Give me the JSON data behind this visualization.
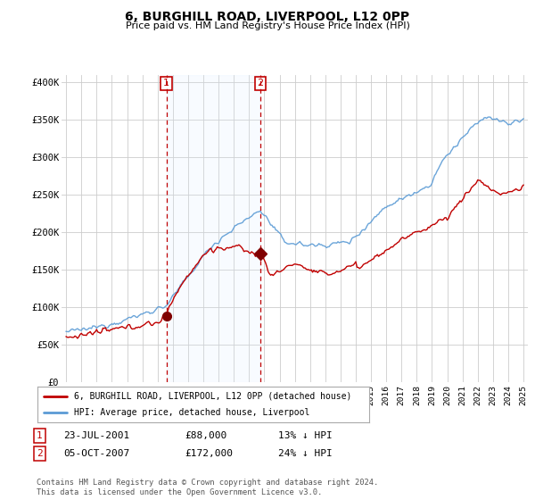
{
  "title": "6, BURGHILL ROAD, LIVERPOOL, L12 0PP",
  "subtitle": "Price paid vs. HM Land Registry's House Price Index (HPI)",
  "ylim": [
    0,
    410000
  ],
  "yticks": [
    0,
    50000,
    100000,
    150000,
    200000,
    250000,
    300000,
    350000,
    400000
  ],
  "ytick_labels": [
    "£0",
    "£50K",
    "£100K",
    "£150K",
    "£200K",
    "£250K",
    "£300K",
    "£350K",
    "£400K"
  ],
  "hpi_color": "#5b9bd5",
  "price_color": "#c00000",
  "vline_color": "#c00000",
  "shade_color": "#ddeeff",
  "t1_year": 2001.583,
  "t2_year": 2007.75,
  "t1_price": 88000,
  "t2_price": 172000,
  "transaction1_date": "23-JUL-2001",
  "transaction1_price": "£88,000",
  "transaction1_hpi": "13% ↓ HPI",
  "transaction2_date": "05-OCT-2007",
  "transaction2_price": "£172,000",
  "transaction2_hpi": "24% ↓ HPI",
  "legend_line1": "6, BURGHILL ROAD, LIVERPOOL, L12 0PP (detached house)",
  "legend_line2": "HPI: Average price, detached house, Liverpool",
  "footer": "Contains HM Land Registry data © Crown copyright and database right 2024.\nThis data is licensed under the Open Government Licence v3.0.",
  "background_color": "#ffffff",
  "plot_bg_color": "#ffffff",
  "grid_color": "#cccccc",
  "xlim_left": 1994.7,
  "xlim_right": 2025.3
}
